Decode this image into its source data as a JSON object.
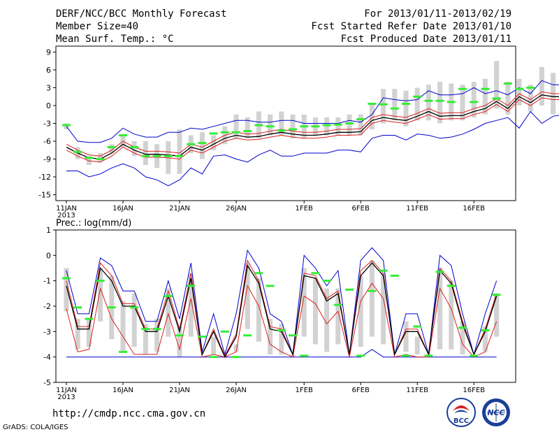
{
  "header": {
    "title": "DERF/NCC/BCC Monthly Forecast",
    "member_size": "Member Size=40",
    "variable": "Mean Surf. Temp.: °C",
    "period": "For 2013/01/11-2013/02/19",
    "refer_date": "Fcst Started Refer Date 2013/01/10",
    "produced_date": "Fcst Produced Date 2013/01/11"
  },
  "footer": {
    "url": "http://cmdp.ncc.cma.gov.cn",
    "grads": "GrADS: COLA/IGES",
    "logo_bcc": "BCC",
    "logo_ncc": "NCC"
  },
  "colors": {
    "median": "#000000",
    "inner_band": "#dd2020",
    "outer_band": "#0000cc",
    "bars": "#d2d2d2",
    "observed": "#33ee33"
  },
  "chart_data": [
    {
      "type": "line",
      "title": "Mean Surf. Temp.: °C",
      "ylim": [
        -16,
        10
      ],
      "yticks": [
        -15,
        -12,
        -9,
        -6,
        -3,
        0,
        3,
        6,
        9
      ],
      "xtick_days": [
        0,
        5,
        10,
        15,
        21,
        26,
        31,
        36
      ],
      "xtick_labels": [
        "11JAN",
        "16JAN",
        "21JAN",
        "26JAN",
        "1FEB",
        "6FEB",
        "11FEB",
        "16FEB"
      ],
      "year_label": "2013",
      "series": [
        {
          "name": "median",
          "values": [
            -7,
            -8,
            -8.8,
            -9,
            -8,
            -6.5,
            -7.5,
            -8.2,
            -8.2,
            -8.3,
            -8.5,
            -7,
            -7.5,
            -6.5,
            -5.5,
            -5,
            -5.3,
            -5.2,
            -4.8,
            -4.5,
            -4.8,
            -5,
            -5,
            -4.8,
            -4.5,
            -4.5,
            -4.4,
            -2.5,
            -2,
            -2.3,
            -2.5,
            -1.8,
            -1,
            -1.8,
            -1.7,
            -1.7,
            -1,
            -0.5,
            0.7,
            -0.5,
            1.5,
            0.5,
            1.8,
            1.5,
            1.5,
            1.8
          ]
        },
        {
          "name": "inner_upper",
          "values": [
            -6.5,
            -7.5,
            -8.3,
            -8.5,
            -7.5,
            -6,
            -7,
            -7.7,
            -7.7,
            -7.8,
            -8,
            -6.5,
            -7,
            -6,
            -5,
            -4.5,
            -4.8,
            -4.7,
            -4.3,
            -4,
            -4.3,
            -4.5,
            -4.5,
            -4.3,
            -4,
            -4,
            -3.9,
            -2,
            -1.5,
            -1.8,
            -2,
            -1.3,
            -0.5,
            -1.3,
            -1.2,
            -1.2,
            -0.5,
            0,
            1.2,
            0,
            2,
            1,
            2.3,
            2,
            2,
            2.3
          ]
        },
        {
          "name": "inner_lower",
          "values": [
            -7.5,
            -8.5,
            -9.3,
            -9.5,
            -8.5,
            -7,
            -8,
            -8.7,
            -8.7,
            -8.8,
            -9,
            -7.5,
            -8,
            -7,
            -6,
            -5.5,
            -5.8,
            -5.7,
            -5.3,
            -5,
            -5.3,
            -5.5,
            -5.5,
            -5.3,
            -5,
            -5,
            -4.9,
            -3,
            -2.5,
            -2.8,
            -3,
            -2.3,
            -1.5,
            -2.3,
            -2.2,
            -2.2,
            -1.5,
            -1,
            0.2,
            -1,
            1,
            0,
            1.3,
            1,
            1,
            1.3
          ]
        },
        {
          "name": "outer_upper",
          "values": [
            -3.5,
            -6,
            -6.2,
            -6.2,
            -5.5,
            -3.8,
            -4.8,
            -5.3,
            -5.3,
            -4.5,
            -4.5,
            -3.8,
            -4,
            -3.5,
            -3,
            -2.5,
            -2.5,
            -2.8,
            -2.8,
            -2.5,
            -2.5,
            -3,
            -3,
            -3,
            -3,
            -2.5,
            -2.8,
            -1.5,
            1.3,
            1,
            0.8,
            1,
            2.5,
            1.8,
            1.8,
            2,
            3,
            2,
            2.5,
            1.8,
            3,
            2,
            4.2,
            3.5,
            3.5,
            4
          ]
        },
        {
          "name": "outer_lower",
          "values": [
            -11,
            -11,
            -12,
            -11.5,
            -10.5,
            -9.8,
            -10.5,
            -12,
            -12.5,
            -13.5,
            -12.5,
            -10.5,
            -11.5,
            -8.5,
            -8.3,
            -9,
            -9.5,
            -8.3,
            -7.5,
            -8.5,
            -8.5,
            -8,
            -8,
            -8,
            -7.5,
            -7.5,
            -7.8,
            -5.5,
            -5,
            -5,
            -5.8,
            -4.8,
            -5,
            -5.5,
            -5.3,
            -4.8,
            -4,
            -3,
            -2.5,
            -2,
            -3.8,
            -1,
            -3,
            -1.8,
            -1.5,
            -1.3
          ]
        },
        {
          "name": "bar_top",
          "values": [
            -3,
            -7,
            -8.5,
            -8,
            -6.5,
            -5,
            -6,
            -6,
            -6.5,
            -6,
            -4,
            -5,
            -4.5,
            -5,
            -3.5,
            -1.5,
            -2,
            -1,
            -1.5,
            -1,
            -1.5,
            -1.5,
            -2,
            -2,
            -2,
            -1.5,
            -1.5,
            0.3,
            2.8,
            2.8,
            2.5,
            3,
            3.5,
            4,
            3.7,
            3.5,
            4,
            4.5,
            7.5,
            4,
            4.5,
            3.5,
            6.5,
            5.5,
            5.2,
            5.2
          ]
        },
        {
          "name": "bar_bottom",
          "values": [
            -4,
            -9,
            -10,
            -9.5,
            -8,
            -7,
            -8.5,
            -10,
            -10.5,
            -11.5,
            -11.5,
            -8,
            -9,
            -7.5,
            -6.5,
            -5.5,
            -5.5,
            -5.5,
            -5,
            -5,
            -5.5,
            -5.5,
            -5,
            -5,
            -5,
            -5,
            -5,
            -4,
            -3,
            -2.5,
            -3.5,
            -2.5,
            -2.5,
            -3,
            -2.5,
            -2.5,
            -2,
            -1.5,
            -0.5,
            -1.5,
            0,
            -1,
            0,
            -1.5,
            -1.5,
            -1
          ]
        },
        {
          "name": "observed",
          "values": [
            -3.3,
            -7.8,
            -8.8,
            -9,
            -7,
            -5,
            -7,
            -8.5,
            -8.5,
            -8.5,
            -8.5,
            -6.5,
            -6.3,
            -4.7,
            -4.5,
            -4.5,
            -4.3,
            -3.3,
            -3.5,
            -4.2,
            -4,
            -3.5,
            -3.5,
            -3.3,
            -3.2,
            -3,
            -2.3,
            0.3,
            0.2,
            -0.5,
            0.3,
            1.5,
            0.8,
            0.8,
            0.6,
            2.8,
            0.6,
            2.8,
            1.2,
            3.7,
            2.8,
            3
          ]
        }
      ]
    },
    {
      "type": "line",
      "title": "Prec.: log(mm/d)",
      "ylim": [
        -5,
        1
      ],
      "yticks": [
        -5,
        -4,
        -3,
        -2,
        -1,
        0,
        1
      ],
      "xtick_days": [
        0,
        5,
        10,
        15,
        21,
        26,
        31,
        36
      ],
      "xtick_labels": [
        "11JAN",
        "16JAN",
        "21JAN",
        "26JAN",
        "1FEB",
        "6FEB",
        "11FEB",
        "16FEB"
      ],
      "year_label": "2013",
      "series": [
        {
          "name": "median",
          "values": [
            -1.2,
            -2.9,
            -2.9,
            -0.5,
            -1,
            -2,
            -2,
            -3,
            -3,
            -1.6,
            -3,
            -0.9,
            -3.9,
            -3,
            -4,
            -3.2,
            -0.4,
            -1.1,
            -2.9,
            -3,
            -3.9,
            -0.8,
            -0.9,
            -1.8,
            -1.5,
            -3.9,
            -0.8,
            -0.3,
            -0.8,
            -3.9,
            -3,
            -3,
            -3.9,
            -0.6,
            -1.1,
            -2.7,
            -3.9,
            -3,
            -1.6
          ]
        },
        {
          "name": "inner_upper",
          "values": [
            -1,
            -2.8,
            -2.8,
            -0.3,
            -0.8,
            -1.9,
            -1.9,
            -2.9,
            -2.9,
            -1.4,
            -2.9,
            -0.7,
            -3.9,
            -2.9,
            -3.95,
            -3.1,
            -0.2,
            -1,
            -2.8,
            -2.9,
            -3.9,
            -0.7,
            -0.8,
            -1.7,
            -1.4,
            -3.9,
            -0.6,
            -0.2,
            -0.7,
            -3.9,
            -2.9,
            -2.9,
            -3.9,
            -0.5,
            -1,
            -2.6,
            -3.9,
            -2.9,
            -1.5
          ]
        },
        {
          "name": "inner_lower",
          "values": [
            -2.1,
            -3.8,
            -3.7,
            -1.3,
            -2.5,
            -3.2,
            -3.9,
            -3.9,
            -3.9,
            -2.3,
            -3.7,
            -1.7,
            -4,
            -3.9,
            -4,
            -3.8,
            -1.2,
            -2,
            -3.5,
            -3.8,
            -4,
            -1.6,
            -1.9,
            -2.7,
            -2.2,
            -4,
            -1.8,
            -1.1,
            -1.7,
            -4,
            -3.9,
            -4,
            -4,
            -1.3,
            -2.1,
            -3.5,
            -4,
            -3.8,
            -2.6
          ]
        },
        {
          "name": "outer_upper",
          "values": [
            -0.6,
            -2.3,
            -2.3,
            -0.1,
            -0.4,
            -1.4,
            -1.4,
            -2.6,
            -2.6,
            -1,
            -2.5,
            -0.3,
            -3.8,
            -2.3,
            -3.9,
            -2.3,
            0.2,
            -0.5,
            -2.3,
            -2.6,
            -3.9,
            0,
            -0.5,
            -1.2,
            -0.6,
            -3.9,
            -0.2,
            0.3,
            -0.2,
            -3.9,
            -2.3,
            -2.3,
            -3.9,
            0,
            -0.4,
            -2.3,
            -3.9,
            -2.3,
            -1
          ]
        },
        {
          "name": "outer_lower",
          "values": [
            -4,
            -4,
            -4,
            -4,
            -4,
            -4,
            -4,
            -4,
            -4,
            -4,
            -4,
            -4,
            -4,
            -4,
            -4,
            -4,
            -4,
            -4,
            -4,
            -4,
            -4,
            -4,
            -4,
            -4,
            -4,
            -4,
            -4,
            -3.7,
            -4,
            -4,
            -4,
            -4,
            -4,
            -4,
            -4,
            -4,
            -4,
            -4,
            -4
          ]
        },
        {
          "name": "bar_top",
          "values": [
            -0.5,
            -2.5,
            -2.5,
            -0.5,
            -0.8,
            -1.8,
            -1.5,
            -2.7,
            -2.5,
            -1.3,
            -2.8,
            -0.7,
            -4,
            -3.2,
            -4,
            -3.5,
            -0.3,
            -0.9,
            -2.5,
            -2.7,
            -3.9,
            -0.5,
            -0.9,
            -1.3,
            -1.3,
            -4,
            -0.8,
            -0.2,
            -0.7,
            -4,
            -2.6,
            -3.2,
            -3.9,
            -0.5,
            -1,
            -2.6,
            -4,
            -2.8,
            -1.5
          ]
        },
        {
          "name": "bar_bottom",
          "values": [
            -2.2,
            -3.7,
            -3.6,
            -2.6,
            -3.3,
            -3.8,
            -3.6,
            -3.9,
            -3.8,
            -3.2,
            -4,
            -3.2,
            -4,
            -3.9,
            -4,
            -3.8,
            -2.9,
            -3.4,
            -3.9,
            -3.9,
            -4,
            -3.2,
            -3.5,
            -3.8,
            -3.5,
            -4,
            -3.6,
            -3.2,
            -3.5,
            -4,
            -3.8,
            -3.9,
            -4,
            -3.7,
            -3.7,
            -3.9,
            -4,
            -3.8,
            -3.2
          ]
        },
        {
          "name": "observed",
          "values": [
            -0.9,
            -2.05,
            -2.5,
            -1,
            -2.05,
            -3.8,
            -2.05,
            -2.9,
            -2.9,
            -1.6,
            -3.15,
            -1.2,
            -3.2,
            -4,
            -3,
            -4,
            -3.15,
            -0.7,
            -1.2,
            -2.95,
            -3.15,
            -3.95,
            -0.7,
            -1,
            -1.95,
            -1.35,
            -3.95,
            -1.4,
            -0.6,
            -0.8,
            -3.95,
            -2.8,
            -3.95,
            -0.65,
            -1.2,
            -2.85,
            -3.95,
            -2.95,
            -1.55
          ]
        }
      ]
    }
  ]
}
